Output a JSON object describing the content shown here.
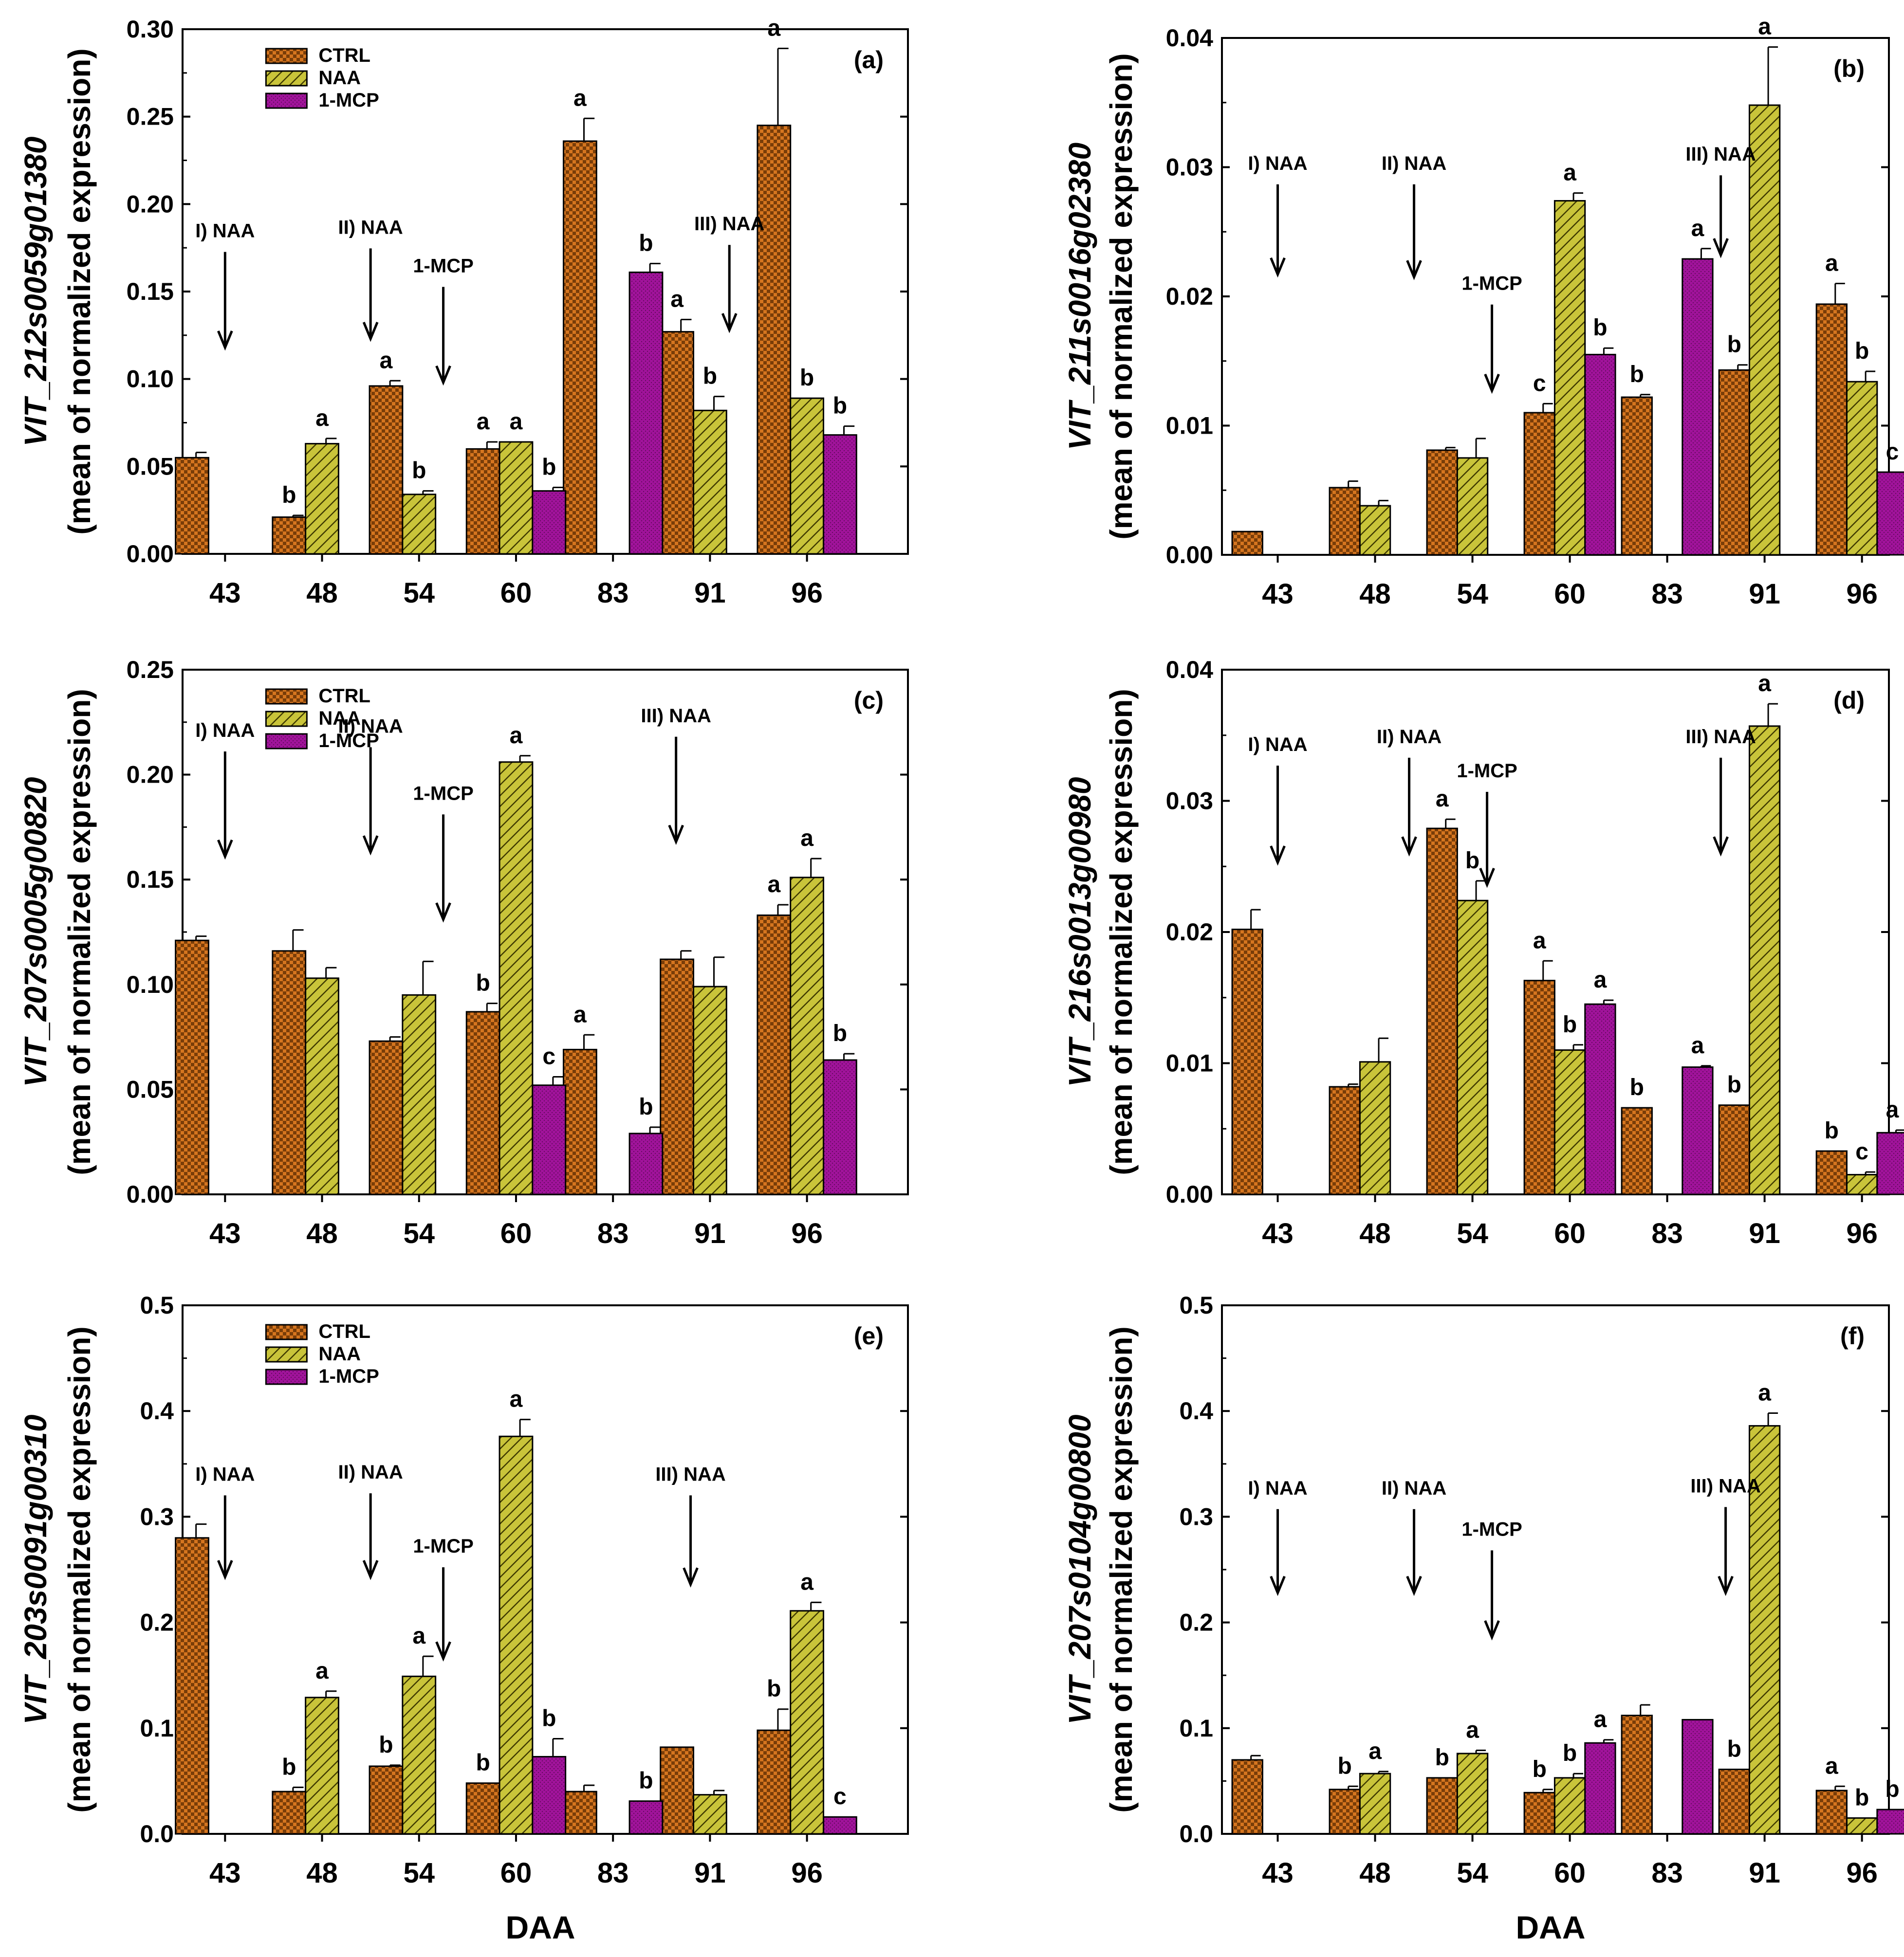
{
  "figure": {
    "colors": {
      "ctrl": "#D5751F",
      "ctrl_check": "#5A2A00",
      "naa": "#C9C43A",
      "naa_hatch": "#3F3A00",
      "mcp": "#A0139A",
      "mcp_dot": "#5E0A58"
    },
    "legend": [
      "CTRL",
      "NAA",
      "1-MCP"
    ],
    "xlabel": "DAA",
    "categories": [
      "43",
      "48",
      "54",
      "60",
      "83",
      "91",
      "96"
    ]
  },
  "chart_data": [
    {
      "id": "a",
      "type": "bar",
      "panel_label": "(a)",
      "ylabel_gene": "VIT_212s0059g01380",
      "ylabel_sub": "(mean of normalized expression)",
      "xlabel": "",
      "ylim": [
        0,
        0.3
      ],
      "yticks": [
        "0.00",
        "0.05",
        "0.10",
        "0.15",
        "0.20",
        "0.25",
        "0.30"
      ],
      "show_legend": true,
      "series": [
        {
          "name": "CTRL",
          "values": [
            0.055,
            0.021,
            0.096,
            0.06,
            0.236,
            0.127,
            0.245
          ],
          "errors": [
            0.003,
            0.001,
            0.003,
            0.004,
            0.013,
            0.007,
            0.044
          ],
          "letters": [
            "",
            "b",
            "a",
            "a",
            "a",
            "a",
            "a"
          ]
        },
        {
          "name": "NAA",
          "values": [
            null,
            0.063,
            0.034,
            0.064,
            null,
            0.082,
            0.089
          ],
          "errors": [
            0,
            0.003,
            0.002,
            0,
            0,
            0.008,
            0
          ],
          "letters": [
            "",
            "a",
            "b",
            "a",
            "",
            "b",
            "b"
          ]
        },
        {
          "name": "1-MCP",
          "values": [
            null,
            null,
            null,
            0.036,
            0.161,
            null,
            0.068
          ],
          "errors": [
            0,
            0,
            0,
            0.002,
            0.005,
            0,
            0.005
          ],
          "letters": [
            "",
            "",
            "",
            "b",
            "b",
            "",
            "b"
          ]
        }
      ],
      "arrows": [
        {
          "label": "I) NAA",
          "pos": 0.0,
          "text_value": 0.181,
          "tip_value": 0.118
        },
        {
          "label": "II) NAA",
          "pos": 1.5,
          "text_value": 0.183,
          "tip_value": 0.123
        },
        {
          "label": "1-MCP",
          "pos": 2.25,
          "text_value": 0.161,
          "tip_value": 0.098
        },
        {
          "label": "III) NAA",
          "pos": 5.2,
          "text_value": 0.185,
          "tip_value": 0.128
        }
      ]
    },
    {
      "id": "b",
      "type": "bar",
      "panel_label": "(b)",
      "ylabel_gene": "VIT_211s0016g02380",
      "ylabel_sub": "(mean of normalized expression)",
      "xlabel": "",
      "ylim": [
        0,
        0.04
      ],
      "yticks": [
        "0.00",
        "0.01",
        "0.02",
        "0.03",
        "0.04"
      ],
      "show_legend": false,
      "series": [
        {
          "name": "CTRL",
          "values": [
            0.0018,
            0.0052,
            0.0081,
            0.011,
            0.0122,
            0.0143,
            0.0194
          ],
          "errors": [
            0,
            0.0005,
            0.0002,
            0.0007,
            0.0002,
            0.0004,
            0.0016
          ],
          "letters": [
            "",
            "",
            "",
            "c",
            "b",
            "b",
            "a"
          ]
        },
        {
          "name": "NAA",
          "values": [
            null,
            0.0038,
            0.0075,
            0.0274,
            null,
            0.0348,
            0.0134
          ],
          "errors": [
            0,
            0.0004,
            0.0015,
            0.0006,
            0,
            0.0045,
            0.0008
          ],
          "letters": [
            "",
            "",
            "",
            "a",
            "",
            "a",
            "b"
          ]
        },
        {
          "name": "1-MCP",
          "values": [
            null,
            null,
            null,
            0.0155,
            0.0229,
            null,
            0.0064
          ],
          "errors": [
            0,
            0,
            0,
            0.0005,
            0.0008,
            0,
            0
          ],
          "letters": [
            "",
            "",
            "",
            "b",
            "a",
            "",
            "c"
          ]
        }
      ],
      "arrows": [
        {
          "label": "I) NAA",
          "pos": 0.0,
          "text_value": 0.0298,
          "tip_value": 0.0217
        },
        {
          "label": "II) NAA",
          "pos": 1.4,
          "text_value": 0.0298,
          "tip_value": 0.0215
        },
        {
          "label": "1-MCP",
          "pos": 2.2,
          "text_value": 0.0205,
          "tip_value": 0.0127
        },
        {
          "label": "III) NAA",
          "pos": 4.55,
          "text_value": 0.0305,
          "tip_value": 0.0232
        }
      ]
    },
    {
      "id": "c",
      "type": "bar",
      "panel_label": "(c)",
      "ylabel_gene": "VIT_207s0005g00820",
      "ylabel_sub": "(mean of normalized expression)",
      "xlabel": "",
      "ylim": [
        0,
        0.25
      ],
      "yticks": [
        "0.00",
        "0.05",
        "0.10",
        "0.15",
        "0.20",
        "0.25"
      ],
      "show_legend": true,
      "series": [
        {
          "name": "CTRL",
          "values": [
            0.121,
            0.116,
            0.073,
            0.087,
            0.069,
            0.112,
            0.133
          ],
          "errors": [
            0.002,
            0.01,
            0.002,
            0.004,
            0.007,
            0.004,
            0.005
          ],
          "letters": [
            "",
            "",
            "",
            "b",
            "a",
            "",
            "a"
          ]
        },
        {
          "name": "NAA",
          "values": [
            null,
            0.103,
            0.095,
            0.206,
            null,
            0.099,
            0.151
          ],
          "errors": [
            0,
            0.005,
            0.016,
            0.003,
            0,
            0.014,
            0.009
          ],
          "letters": [
            "",
            "",
            "",
            "a",
            "",
            "",
            "a"
          ]
        },
        {
          "name": "1-MCP",
          "values": [
            null,
            null,
            null,
            0.052,
            0.029,
            null,
            0.064
          ],
          "errors": [
            0,
            0,
            0,
            0.004,
            0.003,
            0,
            0.003
          ],
          "letters": [
            "",
            "",
            "",
            "c",
            "b",
            "",
            "b"
          ]
        }
      ],
      "arrows": [
        {
          "label": "I) NAA",
          "pos": 0.0,
          "text_value": 0.218,
          "tip_value": 0.161
        },
        {
          "label": "II) NAA",
          "pos": 1.5,
          "text_value": 0.22,
          "tip_value": 0.163
        },
        {
          "label": "1-MCP",
          "pos": 2.25,
          "text_value": 0.188,
          "tip_value": 0.131
        },
        {
          "label": "III) NAA",
          "pos": 4.65,
          "text_value": 0.225,
          "tip_value": 0.168
        }
      ]
    },
    {
      "id": "d",
      "type": "bar",
      "panel_label": "(d)",
      "ylabel_gene": "VIT_216s0013g00980",
      "ylabel_sub": "(mean of normalized expression)",
      "xlabel": "",
      "ylim": [
        0,
        0.04
      ],
      "yticks": [
        "0.00",
        "0.01",
        "0.02",
        "0.03",
        "0.04"
      ],
      "show_legend": false,
      "series": [
        {
          "name": "CTRL",
          "values": [
            0.0202,
            0.0082,
            0.0279,
            0.0163,
            0.0066,
            0.0068,
            0.0033
          ],
          "errors": [
            0.0015,
            0.0002,
            0.0007,
            0.0015,
            0,
            0,
            0
          ],
          "letters": [
            "",
            "",
            "a",
            "a",
            "b",
            "b",
            "b"
          ]
        },
        {
          "name": "NAA",
          "values": [
            null,
            0.0101,
            0.0224,
            0.011,
            null,
            0.0357,
            0.0015
          ],
          "errors": [
            0,
            0.0018,
            0.0015,
            0.0004,
            0,
            0.0017,
            0.0002
          ],
          "letters": [
            "",
            "",
            "b",
            "b",
            "",
            "a",
            "c"
          ]
        },
        {
          "name": "1-MCP",
          "values": [
            null,
            null,
            null,
            0.0145,
            0.0097,
            null,
            0.0047
          ],
          "errors": [
            0,
            0,
            0,
            0.0003,
            0.0001,
            0,
            0.0002
          ],
          "letters": [
            "",
            "",
            "",
            "a",
            "a",
            "",
            "a"
          ]
        }
      ],
      "arrows": [
        {
          "label": "I) NAA",
          "pos": 0.0,
          "text_value": 0.0338,
          "tip_value": 0.0253
        },
        {
          "label": "II) NAA",
          "pos": 1.35,
          "text_value": 0.0344,
          "tip_value": 0.026
        },
        {
          "label": "1-MCP",
          "pos": 2.15,
          "text_value": 0.0318,
          "tip_value": 0.0236
        },
        {
          "label": "III) NAA",
          "pos": 4.55,
          "text_value": 0.0344,
          "tip_value": 0.026
        }
      ]
    },
    {
      "id": "e",
      "type": "bar",
      "panel_label": "(e)",
      "ylabel_gene": "VIT_203s0091g00310",
      "ylabel_sub": "(mean of normalized expression)",
      "xlabel": "DAA",
      "ylim": [
        0,
        0.5
      ],
      "yticks": [
        "0.0",
        "0.1",
        "0.2",
        "0.3",
        "0.4",
        "0.5"
      ],
      "show_legend": true,
      "series": [
        {
          "name": "CTRL",
          "values": [
            0.28,
            0.04,
            0.064,
            0.048,
            0.04,
            0.082,
            0.098
          ],
          "errors": [
            0.013,
            0.004,
            0.001,
            0,
            0.006,
            0,
            0.02
          ],
          "letters": [
            "",
            "b",
            "b",
            "b",
            "",
            "",
            "b"
          ]
        },
        {
          "name": "NAA",
          "values": [
            null,
            0.129,
            0.149,
            0.376,
            null,
            0.037,
            0.211
          ],
          "errors": [
            0,
            0.006,
            0.019,
            0.016,
            0,
            0.004,
            0.008
          ],
          "letters": [
            "",
            "a",
            "a",
            "a",
            "",
            "",
            "a"
          ]
        },
        {
          "name": "1-MCP",
          "values": [
            null,
            null,
            null,
            0.073,
            0.031,
            null,
            0.016
          ],
          "errors": [
            0,
            0,
            0,
            0.017,
            0,
            0,
            0
          ],
          "letters": [
            "",
            "",
            "",
            "b",
            "b",
            "",
            "c"
          ]
        }
      ],
      "arrows": [
        {
          "label": "I) NAA",
          "pos": 0.0,
          "text_value": 0.334,
          "tip_value": 0.243
        },
        {
          "label": "II) NAA",
          "pos": 1.5,
          "text_value": 0.336,
          "tip_value": 0.243
        },
        {
          "label": "1-MCP",
          "pos": 2.25,
          "text_value": 0.266,
          "tip_value": 0.166
        },
        {
          "label": "III) NAA",
          "pos": 4.8,
          "text_value": 0.334,
          "tip_value": 0.236
        }
      ]
    },
    {
      "id": "f",
      "type": "bar",
      "panel_label": "(f)",
      "ylabel_gene": "VIT_207s0104g00800",
      "ylabel_sub": "(mean of normalized expression)",
      "xlabel": "DAA",
      "ylim": [
        0,
        0.5
      ],
      "yticks": [
        "0.0",
        "0.1",
        "0.2",
        "0.3",
        "0.4",
        "0.5"
      ],
      "show_legend": false,
      "series": [
        {
          "name": "CTRL",
          "values": [
            0.07,
            0.042,
            0.053,
            0.039,
            0.112,
            0.061,
            0.041
          ],
          "errors": [
            0.004,
            0.003,
            0,
            0.003,
            0.01,
            0,
            0.004
          ],
          "letters": [
            "",
            "b",
            "b",
            "b",
            "",
            "b",
            "a"
          ]
        },
        {
          "name": "NAA",
          "values": [
            null,
            0.057,
            0.076,
            0.053,
            null,
            0.386,
            0.015
          ],
          "errors": [
            0,
            0.002,
            0.003,
            0.004,
            0,
            0.012,
            0
          ],
          "letters": [
            "",
            "a",
            "a",
            "b",
            "",
            "a",
            "b"
          ]
        },
        {
          "name": "1-MCP",
          "values": [
            null,
            null,
            null,
            0.086,
            0.108,
            null,
            0.023
          ],
          "errors": [
            0,
            0,
            0,
            0.003,
            0,
            0,
            0
          ],
          "letters": [
            "",
            "",
            "",
            "a",
            "",
            "",
            "b"
          ]
        }
      ],
      "arrows": [
        {
          "label": "I) NAA",
          "pos": 0.0,
          "text_value": 0.321,
          "tip_value": 0.228
        },
        {
          "label": "II) NAA",
          "pos": 1.4,
          "text_value": 0.321,
          "tip_value": 0.228
        },
        {
          "label": "1-MCP",
          "pos": 2.2,
          "text_value": 0.282,
          "tip_value": 0.186
        },
        {
          "label": "III) NAA",
          "pos": 4.6,
          "text_value": 0.323,
          "tip_value": 0.228
        }
      ]
    }
  ]
}
